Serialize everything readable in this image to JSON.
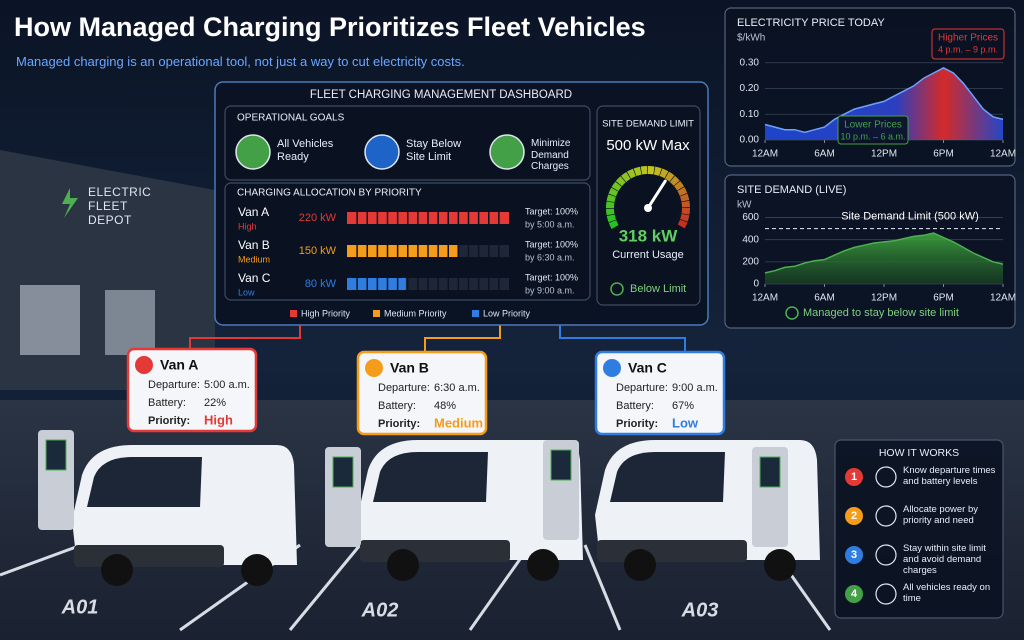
{
  "header": {
    "title": "How Managed Charging Prioritizes Fleet Vehicles",
    "subtitle": "Managed charging is an operational tool, not just a way to cut electricity costs."
  },
  "chart_data": [
    {
      "type": "area",
      "title": "ELECTRICITY PRICE TODAY",
      "y_label": "$/kWh",
      "x": [
        0,
        1,
        2,
        3,
        4,
        5,
        6,
        7,
        8,
        9,
        10,
        11,
        12,
        13,
        14,
        15,
        16,
        17,
        18,
        19,
        20,
        21,
        22,
        23,
        24
      ],
      "values": [
        0.06,
        0.05,
        0.04,
        0.04,
        0.03,
        0.04,
        0.05,
        0.08,
        0.1,
        0.12,
        0.13,
        0.14,
        0.15,
        0.17,
        0.19,
        0.21,
        0.24,
        0.26,
        0.28,
        0.26,
        0.22,
        0.17,
        0.12,
        0.09,
        0.08
      ],
      "xlim": [
        0,
        24
      ],
      "xticks": [
        {
          "value": 0,
          "label": "12AM"
        },
        {
          "value": 6,
          "label": "6AM"
        },
        {
          "value": 12,
          "label": "12PM"
        },
        {
          "value": 18,
          "label": "6PM"
        },
        {
          "value": 24,
          "label": "12AM"
        }
      ],
      "ylim": [
        0,
        0.33
      ],
      "yticks": [
        {
          "value": 0,
          "label": "0.00"
        },
        {
          "value": 0.1,
          "label": "0.10"
        },
        {
          "value": 0.2,
          "label": "0.20"
        },
        {
          "value": 0.3,
          "label": "0.30"
        }
      ],
      "grid": true,
      "annotations": [
        {
          "title": "Higher Prices",
          "text": "4 p.m. – 9 p.m.",
          "color": "#e53935"
        },
        {
          "title": "Lower Prices",
          "text": "10 p.m. – 6 a.m.",
          "color": "#43a047"
        }
      ]
    },
    {
      "type": "area",
      "title": "SITE DEMAND (LIVE)",
      "y_label": "kW",
      "x": [
        0,
        1,
        2,
        3,
        4,
        5,
        6,
        7,
        8,
        9,
        10,
        11,
        12,
        13,
        14,
        15,
        16,
        17,
        18,
        19,
        20,
        21,
        22,
        23,
        24
      ],
      "values": [
        100,
        120,
        150,
        160,
        190,
        210,
        220,
        260,
        300,
        330,
        350,
        370,
        380,
        390,
        410,
        430,
        440,
        460,
        420,
        380,
        330,
        280,
        240,
        200,
        180
      ],
      "xlim": [
        0,
        24
      ],
      "xticks": [
        {
          "value": 0,
          "label": "12AM"
        },
        {
          "value": 6,
          "label": "6AM"
        },
        {
          "value": 12,
          "label": "12PM"
        },
        {
          "value": 18,
          "label": "6PM"
        },
        {
          "value": 24,
          "label": "12AM"
        }
      ],
      "ylim": [
        0,
        650
      ],
      "yticks": [
        0,
        200,
        400,
        600
      ],
      "grid": true,
      "color": "#4caf50",
      "limit": 500,
      "limit_label": "Site Demand Limit (500 kW)",
      "note": "Managed to stay below site limit"
    }
  ],
  "dashboard": {
    "title": "FLEET CHARGING MANAGEMENT DASHBOARD",
    "goals_title": "OPERATIONAL GOALS",
    "goals": [
      {
        "text": "All Vehicles Ready",
        "color": "#43a047"
      },
      {
        "text": "Stay Below Site Limit",
        "color": "#1e64c8"
      },
      {
        "text": "Minimize Demand Charges",
        "color": "#43a047"
      }
    ],
    "allocation_title": "CHARGING ALLOCATION BY PRIORITY",
    "allocation": [
      {
        "vehicle": "Van A",
        "priority": "High",
        "power": {
          "value": 220,
          "label": "220 kW"
        },
        "target": "Target: 100%",
        "deadline": "by 5:00 a.m.",
        "color": "#e53935"
      },
      {
        "vehicle": "Van B",
        "priority": "Medium",
        "power": {
          "value": 150,
          "label": "150 kW"
        },
        "target": "Target: 100%",
        "deadline": "by 6:30 a.m.",
        "color": "#f59c1a"
      },
      {
        "vehicle": "Van C",
        "priority": "Low",
        "power": {
          "value": 80,
          "label": "80 kW"
        },
        "target": "Target: 100%",
        "deadline": "by 9:00 a.m.",
        "color": "#2f7de1"
      }
    ],
    "legend": [
      "High Priority",
      "Medium Priority",
      "Low Priority"
    ],
    "demand_limit": {
      "title": "SITE DEMAND LIMIT",
      "limit": {
        "value": 500,
        "label": "500 kW Max"
      },
      "usage": {
        "value": 318,
        "label": "318 kW"
      },
      "usage_caption": "Current Usage",
      "status": "Below Limit"
    }
  },
  "card_labels": {
    "departure": "Departure:",
    "battery": "Battery:",
    "priority": "Priority:"
  },
  "vans": [
    {
      "name": "Van A",
      "departure": "5:00 a.m.",
      "battery": "22%",
      "priority": "High",
      "color": "#e53935"
    },
    {
      "name": "Van B",
      "departure": "6:30 a.m.",
      "battery": "48%",
      "priority": "Medium",
      "color": "#f59c1a"
    },
    {
      "name": "Van C",
      "departure": "9:00 a.m.",
      "battery": "67%",
      "priority": "Low",
      "color": "#2f7de1"
    }
  ],
  "depot": {
    "sign": "ELECTRIC FLEET DEPOT",
    "spaces": [
      "A01",
      "A02",
      "A03"
    ]
  },
  "how_it_works": {
    "title": "HOW IT WORKS",
    "steps": [
      {
        "number": "1",
        "text": "Know departure times and battery levels",
        "color": "#e53935"
      },
      {
        "number": "2",
        "text": "Allocate power by priority and need",
        "color": "#f59c1a"
      },
      {
        "number": "3",
        "text": "Stay within site limit and avoid demand charges",
        "color": "#2f7de1"
      },
      {
        "number": "4",
        "text": "All vehicles ready on time",
        "color": "#43a047"
      }
    ]
  }
}
